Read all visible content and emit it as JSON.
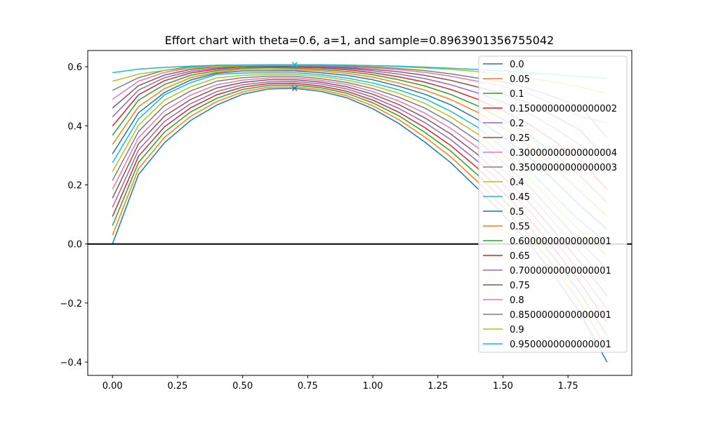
{
  "chart_data": {
    "type": "line",
    "title": "Effort chart with theta=0.6, a=1, and sample=0.8963901356755042",
    "xlabel": "",
    "ylabel": "",
    "xlim": [
      -0.095,
      1.995
    ],
    "ylim": [
      -0.445,
      0.655
    ],
    "x": [
      0.0,
      0.1,
      0.2,
      0.3,
      0.4,
      0.5,
      0.6,
      0.7,
      0.8,
      0.9,
      1.0,
      1.1,
      1.2,
      1.3,
      1.4,
      1.5,
      1.6,
      1.7,
      1.8,
      1.9
    ],
    "x_ticks": [
      0.0,
      0.25,
      0.5,
      0.75,
      1.0,
      1.25,
      1.5,
      1.75
    ],
    "x_tick_labels": [
      "0.00",
      "0.25",
      "0.50",
      "0.75",
      "1.00",
      "1.25",
      "1.50",
      "1.75"
    ],
    "y_ticks": [
      -0.4,
      -0.2,
      0.0,
      0.2,
      0.4,
      0.6
    ],
    "y_tick_labels": [
      "−0.4",
      "−0.2",
      "0.0",
      "0.2",
      "0.4",
      "0.6"
    ],
    "hline_y": 0.0,
    "legend_position": "upper right",
    "grid": false,
    "colors": [
      "#1f77b4",
      "#ff7f0e",
      "#2ca02c",
      "#d62728",
      "#9467bd",
      "#8c564b",
      "#e377c2",
      "#7f7f7f",
      "#bcbd22",
      "#17becf"
    ],
    "markers": [
      {
        "x": 0.7,
        "y": 0.527,
        "symbol": "x",
        "color": "#1f77b4"
      },
      {
        "x": 0.7,
        "y": 0.607,
        "symbol": "x",
        "color": "#17becf"
      }
    ],
    "series": [
      {
        "name": "0.0",
        "values": [
          0.0,
          0.235,
          0.343,
          0.418,
          0.47,
          0.507,
          0.525,
          0.527,
          0.517,
          0.495,
          0.458,
          0.408,
          0.345,
          0.275,
          0.19,
          0.1,
          0.003,
          -0.11,
          -0.24,
          -0.4
        ]
      },
      {
        "name": "0.05",
        "values": [
          0.03,
          0.255,
          0.361,
          0.432,
          0.482,
          0.515,
          0.531,
          0.532,
          0.523,
          0.502,
          0.468,
          0.421,
          0.362,
          0.295,
          0.213,
          0.125,
          0.03,
          -0.08,
          -0.205,
          -0.355
        ]
      },
      {
        "name": "0.1",
        "values": [
          0.062,
          0.276,
          0.379,
          0.447,
          0.493,
          0.523,
          0.537,
          0.538,
          0.529,
          0.51,
          0.478,
          0.434,
          0.378,
          0.314,
          0.236,
          0.15,
          0.058,
          -0.05,
          -0.17,
          -0.31
        ]
      },
      {
        "name": "0.15000000000000002",
        "values": [
          0.093,
          0.297,
          0.397,
          0.461,
          0.505,
          0.531,
          0.543,
          0.544,
          0.535,
          0.517,
          0.487,
          0.446,
          0.394,
          0.333,
          0.259,
          0.176,
          0.086,
          -0.02,
          -0.135,
          -0.265
        ]
      },
      {
        "name": "0.2",
        "values": [
          0.124,
          0.318,
          0.415,
          0.475,
          0.516,
          0.539,
          0.549,
          0.55,
          0.542,
          0.525,
          0.497,
          0.459,
          0.411,
          0.353,
          0.282,
          0.201,
          0.113,
          0.01,
          -0.1,
          -0.22
        ]
      },
      {
        "name": "0.25",
        "values": [
          0.155,
          0.339,
          0.433,
          0.489,
          0.528,
          0.547,
          0.556,
          0.556,
          0.548,
          0.532,
          0.507,
          0.472,
          0.427,
          0.372,
          0.305,
          0.226,
          0.141,
          0.04,
          -0.065,
          -0.175
        ]
      },
      {
        "name": "0.30000000000000004",
        "values": [
          0.185,
          0.36,
          0.451,
          0.504,
          0.539,
          0.555,
          0.562,
          0.562,
          0.554,
          0.54,
          0.516,
          0.484,
          0.443,
          0.391,
          0.328,
          0.251,
          0.169,
          0.07,
          -0.03,
          -0.13
        ]
      },
      {
        "name": "0.35000000000000003",
        "values": [
          0.215,
          0.381,
          0.469,
          0.518,
          0.551,
          0.563,
          0.568,
          0.568,
          0.56,
          0.547,
          0.526,
          0.497,
          0.46,
          0.411,
          0.351,
          0.277,
          0.196,
          0.1,
          0.005,
          -0.085
        ]
      },
      {
        "name": "0.4",
        "values": [
          0.245,
          0.402,
          0.487,
          0.532,
          0.562,
          0.571,
          0.574,
          0.574,
          0.567,
          0.555,
          0.536,
          0.51,
          0.476,
          0.43,
          0.374,
          0.302,
          0.224,
          0.13,
          0.04,
          -0.04
        ]
      },
      {
        "name": "0.45",
        "values": [
          0.275,
          0.423,
          0.505,
          0.546,
          0.574,
          0.579,
          0.58,
          0.58,
          0.573,
          0.562,
          0.545,
          0.522,
          0.492,
          0.449,
          0.397,
          0.327,
          0.252,
          0.16,
          0.075,
          0.005
        ]
      },
      {
        "name": "0.5",
        "values": [
          0.305,
          0.444,
          0.513,
          0.555,
          0.578,
          0.586,
          0.586,
          0.586,
          0.58,
          0.571,
          0.556,
          0.534,
          0.507,
          0.471,
          0.423,
          0.363,
          0.295,
          0.212,
          0.127,
          0.05
        ]
      },
      {
        "name": "0.55",
        "values": [
          0.337,
          0.465,
          0.526,
          0.563,
          0.582,
          0.592,
          0.592,
          0.59,
          0.586,
          0.578,
          0.565,
          0.545,
          0.521,
          0.489,
          0.447,
          0.393,
          0.333,
          0.258,
          0.175,
          0.095
        ]
      },
      {
        "name": "0.6000000000000001",
        "values": [
          0.368,
          0.487,
          0.54,
          0.571,
          0.587,
          0.596,
          0.597,
          0.595,
          0.591,
          0.584,
          0.573,
          0.556,
          0.535,
          0.506,
          0.469,
          0.422,
          0.37,
          0.303,
          0.228,
          0.14
        ]
      },
      {
        "name": "0.65",
        "values": [
          0.399,
          0.505,
          0.553,
          0.579,
          0.592,
          0.6,
          0.6,
          0.599,
          0.596,
          0.59,
          0.58,
          0.566,
          0.548,
          0.523,
          0.491,
          0.451,
          0.406,
          0.347,
          0.281,
          0.185
        ]
      },
      {
        "name": "0.7000000000000001",
        "values": [
          0.43,
          0.521,
          0.563,
          0.585,
          0.596,
          0.601,
          0.602,
          0.601,
          0.599,
          0.594,
          0.586,
          0.575,
          0.56,
          0.539,
          0.512,
          0.48,
          0.442,
          0.391,
          0.334,
          0.23
        ]
      },
      {
        "name": "0.75",
        "values": [
          0.46,
          0.536,
          0.572,
          0.591,
          0.6,
          0.603,
          0.604,
          0.603,
          0.601,
          0.597,
          0.591,
          0.583,
          0.571,
          0.554,
          0.532,
          0.508,
          0.476,
          0.432,
          0.383,
          0.28
        ]
      },
      {
        "name": "0.8",
        "values": [
          0.49,
          0.551,
          0.581,
          0.596,
          0.603,
          0.605,
          0.605,
          0.605,
          0.603,
          0.6,
          0.596,
          0.59,
          0.581,
          0.568,
          0.551,
          0.534,
          0.508,
          0.472,
          0.431,
          0.41
        ]
      },
      {
        "name": "0.8500000000000001",
        "values": [
          0.52,
          0.563,
          0.588,
          0.6,
          0.605,
          0.606,
          0.606,
          0.606,
          0.604,
          0.602,
          0.599,
          0.594,
          0.587,
          0.576,
          0.562,
          0.548,
          0.526,
          0.497,
          0.463,
          0.36
        ]
      },
      {
        "name": "0.9",
        "values": [
          0.551,
          0.575,
          0.588,
          0.596,
          0.601,
          0.604,
          0.606,
          0.606,
          0.606,
          0.605,
          0.603,
          0.6,
          0.596,
          0.591,
          0.584,
          0.575,
          0.562,
          0.548,
          0.531,
          0.51
        ]
      },
      {
        "name": "0.9500000000000001",
        "values": [
          0.58,
          0.592,
          0.598,
          0.602,
          0.605,
          0.606,
          0.607,
          0.607,
          0.607,
          0.606,
          0.604,
          0.602,
          0.599,
          0.595,
          0.591,
          0.586,
          0.58,
          0.574,
          0.567,
          0.56
        ]
      }
    ]
  }
}
